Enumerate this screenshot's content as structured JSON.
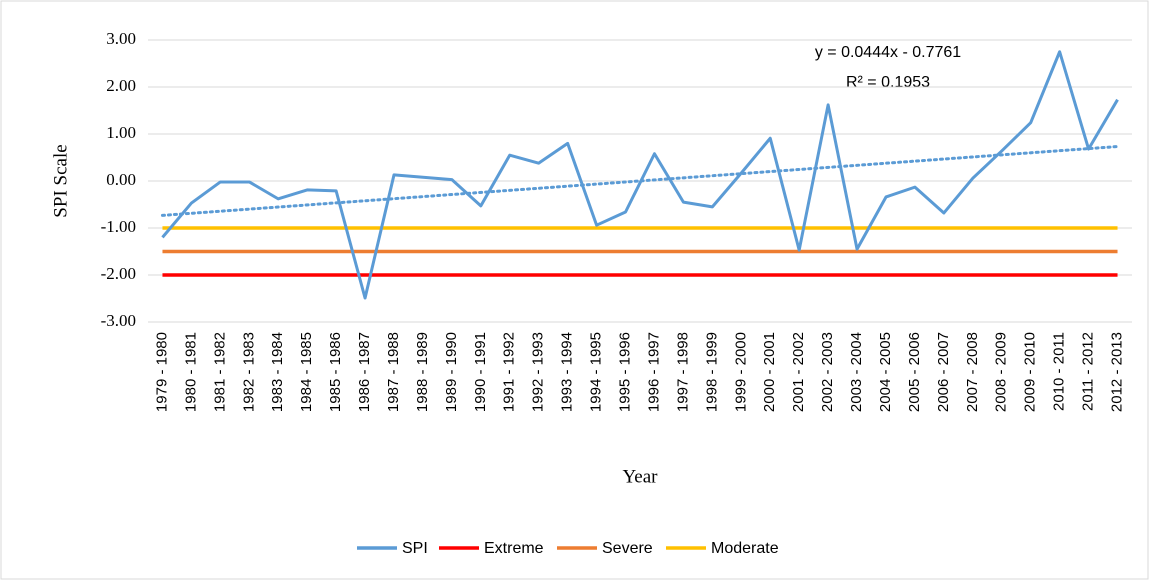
{
  "chart_data": {
    "type": "line",
    "x_label": "Year",
    "y_label": "SPI Scale",
    "categories": [
      "1979 - 1980",
      "1980 - 1981",
      "1981 - 1982",
      "1982 - 1983",
      "1983 - 1984",
      "1984 - 1985",
      "1985 - 1986",
      "1986 - 1987",
      "1987 - 1988",
      "1988 - 1989",
      "1989 - 1990",
      "1990 - 1991",
      "1991 - 1992",
      "1992 - 1993",
      "1993 - 1994",
      "1994 - 1995",
      "1995 - 1996",
      "1996 - 1997",
      "1997 - 1998",
      "1998 - 1999",
      "1999 - 2000",
      "2000 - 2001",
      "2001 - 2002",
      "2002 - 2003",
      "2003 - 2004",
      "2004 - 2005",
      "2005 - 2006",
      "2006 - 2007",
      "2007 - 2008",
      "2008 - 2009",
      "2009 - 2010",
      "2010 - 2011",
      "2011 - 2012",
      "2012 - 2013"
    ],
    "series": [
      {
        "name": "SPI",
        "color": "#5b9bd5",
        "values": [
          -1.2,
          -0.47,
          -0.02,
          -0.02,
          -0.38,
          -0.19,
          -0.21,
          -2.49,
          0.13,
          0.08,
          0.03,
          -0.53,
          0.55,
          0.38,
          0.8,
          -0.94,
          -0.66,
          0.58,
          -0.45,
          -0.55,
          0.17,
          0.91,
          -1.47,
          1.62,
          -1.45,
          -0.34,
          -0.13,
          -0.68,
          0.06,
          0.64,
          1.24,
          2.75,
          0.68,
          1.73
        ]
      },
      {
        "name": "Extreme",
        "color": "#ff0000",
        "values": [
          -2,
          -2,
          -2,
          -2,
          -2,
          -2,
          -2,
          -2,
          -2,
          -2,
          -2,
          -2,
          -2,
          -2,
          -2,
          -2,
          -2,
          -2,
          -2,
          -2,
          -2,
          -2,
          -2,
          -2,
          -2,
          -2,
          -2,
          -2,
          -2,
          -2,
          -2,
          -2,
          -2,
          -2
        ]
      },
      {
        "name": "Severe",
        "color": "#ed7d31",
        "values": [
          -1.5,
          -1.5,
          -1.5,
          -1.5,
          -1.5,
          -1.5,
          -1.5,
          -1.5,
          -1.5,
          -1.5,
          -1.5,
          -1.5,
          -1.5,
          -1.5,
          -1.5,
          -1.5,
          -1.5,
          -1.5,
          -1.5,
          -1.5,
          -1.5,
          -1.5,
          -1.5,
          -1.5,
          -1.5,
          -1.5,
          -1.5,
          -1.5,
          -1.5,
          -1.5,
          -1.5,
          -1.5,
          -1.5,
          -1.5
        ]
      },
      {
        "name": "Moderate",
        "color": "#ffc000",
        "values": [
          -1,
          -1,
          -1,
          -1,
          -1,
          -1,
          -1,
          -1,
          -1,
          -1,
          -1,
          -1,
          -1,
          -1,
          -1,
          -1,
          -1,
          -1,
          -1,
          -1,
          -1,
          -1,
          -1,
          -1,
          -1,
          -1,
          -1,
          -1,
          -1,
          -1,
          -1,
          -1,
          -1,
          -1
        ]
      }
    ],
    "trendline": {
      "slope": 0.0444,
      "intercept": -0.7761,
      "color": "#5b9bd5",
      "equation": "y = 0.0444x - 0.7761",
      "r_squared": "R² = 0.1953"
    },
    "ylim": [
      -3,
      3
    ],
    "yticks": [
      {
        "value": 3,
        "label": "3.00"
      },
      {
        "value": 2,
        "label": "2.00"
      },
      {
        "value": 1,
        "label": "1.00"
      },
      {
        "value": 0,
        "label": "0.00"
      },
      {
        "value": -1,
        "label": "-1.00"
      },
      {
        "value": -2,
        "label": "-2.00"
      },
      {
        "value": -3,
        "label": "-3.00"
      }
    ],
    "grid": true,
    "legend": "bottom"
  }
}
